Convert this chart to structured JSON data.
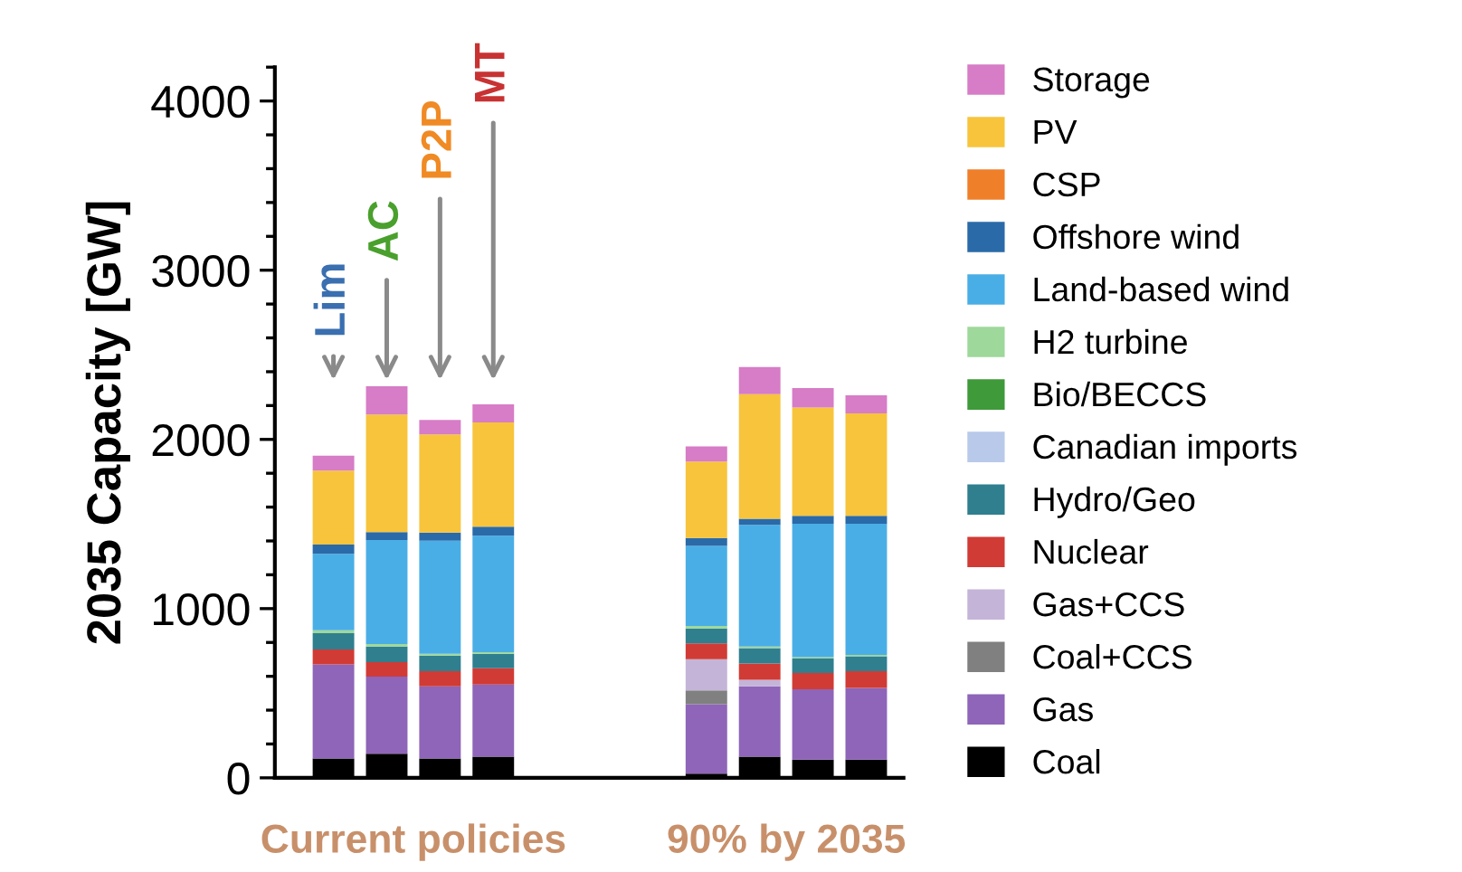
{
  "chart_data": {
    "type": "bar",
    "stacked": true,
    "ylabel": "2035 Capacity [GW]",
    "categories": [
      null,
      null,
      null,
      null,
      null,
      null,
      null,
      null,
      null,
      null,
      null
    ],
    "ylim": [
      0,
      4200
    ],
    "yticks": [
      0,
      {
        "value": 200,
        "label": null
      },
      {
        "value": 400,
        "label": null
      },
      {
        "value": 600,
        "label": null
      },
      {
        "value": 800,
        "label": null
      },
      1000,
      {
        "value": 1200,
        "label": null
      },
      {
        "value": 1400,
        "label": null
      },
      {
        "value": 1600,
        "label": null
      },
      {
        "value": 1800,
        "label": null
      },
      2000,
      {
        "value": 2200,
        "label": null
      },
      {
        "value": 2400,
        "label": null
      },
      {
        "value": 2600,
        "label": null
      },
      {
        "value": 2800,
        "label": null
      },
      3000,
      {
        "value": 3200,
        "label": null
      },
      {
        "value": 3400,
        "label": null
      },
      {
        "value": 3600,
        "label": null
      },
      {
        "value": 3800,
        "label": null
      },
      4000,
      {
        "value": 4200,
        "label": null
      }
    ],
    "tick_labels": "y",
    "grid": false,
    "legend": "right",
    "annotations": [
      "Lim",
      "AC",
      "P2P",
      "MT",
      "Current policies",
      "90% by 2035"
    ],
    "series": [
      {
        "name": "Coal",
        "color": "#000000",
        "values": [
          114,
          142,
          114,
          125,
          null,
          null,
          null,
          25,
          125,
          107,
          107
        ]
      },
      {
        "name": "Gas",
        "color": "#8e65b8",
        "values": [
          556,
          456,
          427,
          427,
          null,
          null,
          null,
          410,
          416,
          416,
          424
        ]
      },
      {
        "name": "Coal+CCS",
        "color": "#808080",
        "values": [
          0,
          0,
          0,
          0,
          null,
          null,
          null,
          81,
          0,
          0,
          0
        ]
      },
      {
        "name": "Gas+CCS",
        "color": "#c4b4d8",
        "values": [
          0,
          0,
          0,
          0,
          null,
          null,
          null,
          185,
          39,
          0,
          0
        ]
      },
      {
        "name": "Nuclear",
        "color": "#d13b35",
        "values": [
          88,
          85,
          89,
          96,
          null,
          null,
          null,
          93,
          96,
          96,
          99
        ]
      },
      {
        "name": "Hydro/Geo",
        "color": "#2f7f8f",
        "values": [
          97,
          93,
          93,
          85,
          null,
          null,
          null,
          89,
          90,
          86,
          89
        ]
      },
      {
        "name": "Canadian imports",
        "color": "#b9c9ea",
        "values": [
          0,
          0,
          0,
          0,
          null,
          null,
          null,
          0,
          0,
          0,
          0
        ]
      },
      {
        "name": "Bio/BECCS",
        "color": "#3f9a3a",
        "values": [
          0,
          0,
          0,
          0,
          null,
          null,
          null,
          0,
          0,
          0,
          0
        ]
      },
      {
        "name": "H2 turbine",
        "color": "#9ed89a",
        "values": [
          17,
          15,
          10,
          10,
          null,
          null,
          null,
          14,
          10,
          8,
          8
        ]
      },
      {
        "name": "Land-based wind",
        "color": "#4aaee6",
        "values": [
          452,
          615,
          669,
          688,
          null,
          null,
          null,
          473,
          719,
          789,
          775
        ]
      },
      {
        "name": "Offshore wind",
        "color": "#2a6aa8",
        "values": [
          54,
          46,
          47,
          53,
          null,
          null,
          null,
          47,
          36,
          47,
          47
        ]
      },
      {
        "name": "CSP",
        "color": "#f07f2a",
        "values": [
          0,
          0,
          0,
          0,
          null,
          null,
          null,
          0,
          0,
          0,
          0
        ]
      },
      {
        "name": "PV",
        "color": "#f7c43c",
        "values": [
          437,
          695,
          580,
          616,
          null,
          null,
          null,
          452,
          737,
          640,
          605
        ]
      },
      {
        "name": "Storage",
        "color": "#d77cc6",
        "values": [
          89,
          167,
          86,
          107,
          null,
          null,
          null,
          89,
          160,
          114,
          107
        ]
      }
    ]
  }
}
